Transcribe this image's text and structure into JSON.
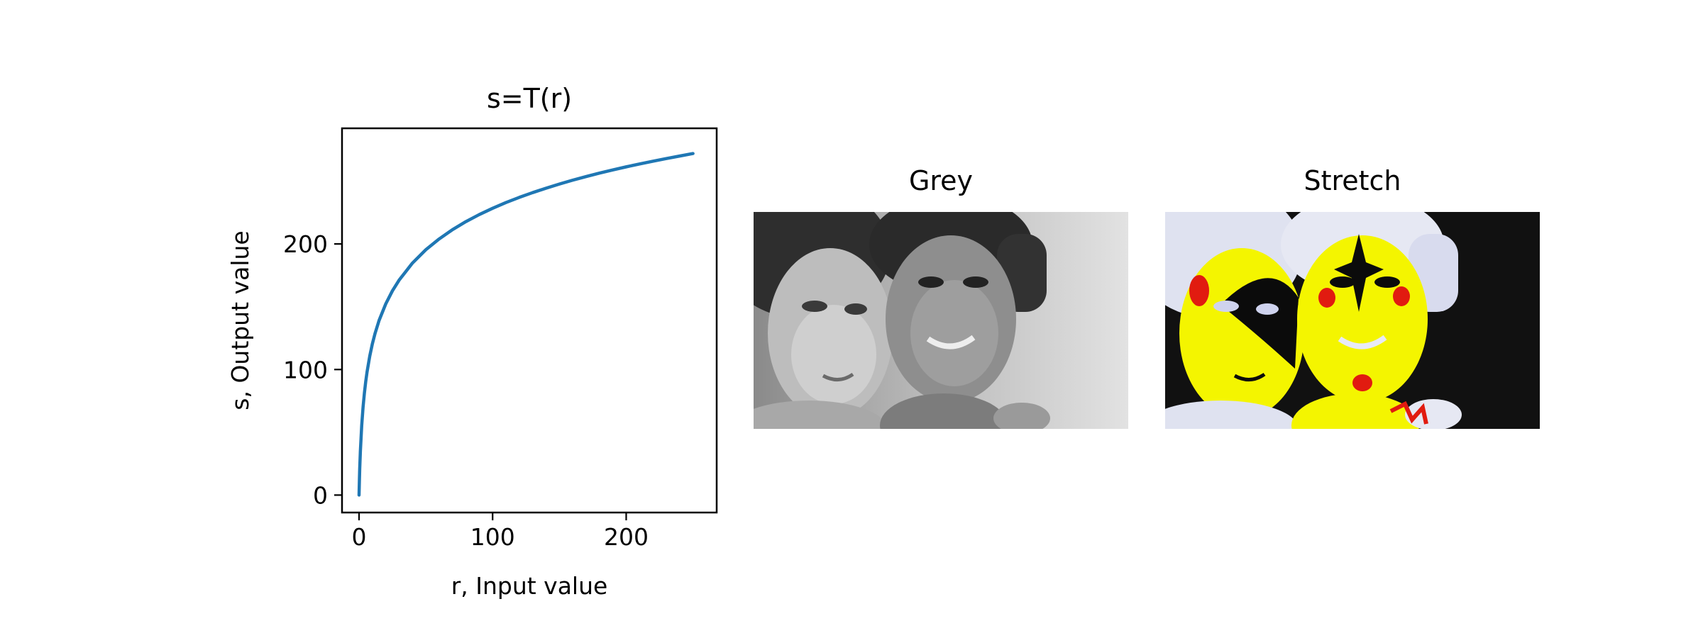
{
  "chart_data": [
    {
      "type": "line",
      "title": "s=T(r)",
      "xlabel": "r, Input value",
      "ylabel": "s, Output value",
      "xlim": [
        -12.75,
        267.75
      ],
      "ylim": [
        -13.9,
        292.1
      ],
      "xticks": [
        0,
        100,
        200
      ],
      "yticks": [
        0,
        100,
        200
      ],
      "grid": false,
      "series": [
        {
          "color": "#1f77b4",
          "x": [
            0,
            0.25,
            0.5,
            1,
            2,
            3,
            4,
            5,
            6,
            8,
            10,
            12,
            15,
            20,
            25,
            30,
            40,
            50,
            60,
            70,
            80,
            90,
            100,
            110,
            120,
            130,
            140,
            150,
            160,
            170,
            180,
            190,
            200,
            210,
            220,
            230,
            240,
            250
          ],
          "y": [
            0,
            11.1,
            20.9,
            35.0,
            55.5,
            70.0,
            81.2,
            90.4,
            98.1,
            110.6,
            120.6,
            128.8,
            139.1,
            152.3,
            162.7,
            171.2,
            184.8,
            195.4,
            204.0,
            211.4,
            217.8,
            223.4,
            228.4,
            233.0,
            237.1,
            240.9,
            244.4,
            247.7,
            250.8,
            253.7,
            256.4,
            259.0,
            261.4,
            263.7,
            265.9,
            268.0,
            270.0,
            272.0
          ]
        }
      ]
    },
    {
      "type": "image",
      "title": "Grey",
      "image": "grayscale portrait of two women, cheek to cheek, light background"
    },
    {
      "type": "image",
      "title": "Stretch",
      "image": "intensity-transformed portrait rendered in false colour: yellow, black, red and pale blue"
    }
  ]
}
